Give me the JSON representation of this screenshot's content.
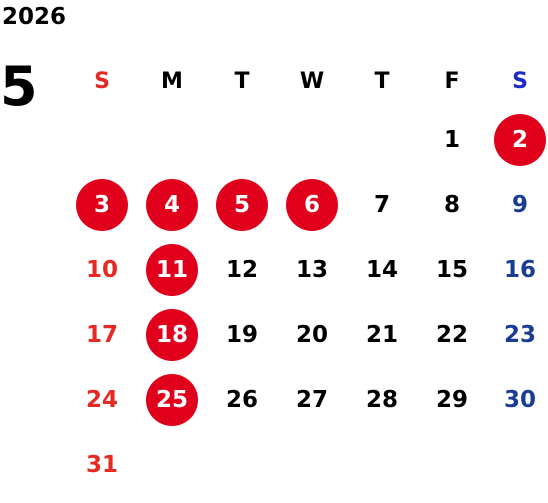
{
  "year": "2026",
  "month": "5",
  "weekdays": [
    "S",
    "M",
    "T",
    "W",
    "T",
    "F",
    "S"
  ],
  "weekday_colors": [
    "red",
    "black",
    "black",
    "black",
    "black",
    "black",
    "bluehdr"
  ],
  "colors": {
    "holiday_circle": "#e0001b",
    "sunday": "#e42a22",
    "saturday": "#1a3d94",
    "saturday_header": "#1a2bc8",
    "weekday": "#000000"
  },
  "weeks": [
    [
      null,
      null,
      null,
      null,
      null,
      {
        "day": "1"
      },
      {
        "day": "2",
        "holiday": true
      }
    ],
    [
      {
        "day": "3",
        "holiday": true
      },
      {
        "day": "4",
        "holiday": true
      },
      {
        "day": "5",
        "holiday": true
      },
      {
        "day": "6",
        "holiday": true
      },
      {
        "day": "7"
      },
      {
        "day": "8"
      },
      {
        "day": "9"
      }
    ],
    [
      {
        "day": "10"
      },
      {
        "day": "11",
        "holiday": true
      },
      {
        "day": "12"
      },
      {
        "day": "13"
      },
      {
        "day": "14"
      },
      {
        "day": "15"
      },
      {
        "day": "16"
      }
    ],
    [
      {
        "day": "17"
      },
      {
        "day": "18",
        "holiday": true
      },
      {
        "day": "19"
      },
      {
        "day": "20"
      },
      {
        "day": "21"
      },
      {
        "day": "22"
      },
      {
        "day": "23"
      }
    ],
    [
      {
        "day": "24"
      },
      {
        "day": "25",
        "holiday": true
      },
      {
        "day": "26"
      },
      {
        "day": "27"
      },
      {
        "day": "28"
      },
      {
        "day": "29"
      },
      {
        "day": "30"
      }
    ],
    [
      {
        "day": "31"
      },
      null,
      null,
      null,
      null,
      null,
      null
    ]
  ]
}
